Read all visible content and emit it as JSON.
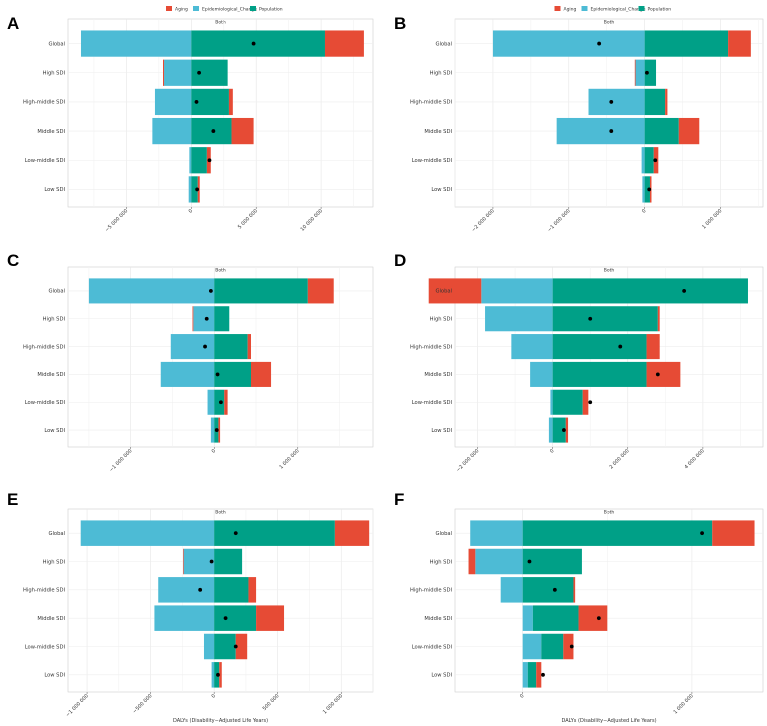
{
  "legend": {
    "entries": [
      {
        "name": "Aging",
        "color": "#E64B35"
      },
      {
        "name": "Epidemiological_Change",
        "color": "#4DBBD5"
      },
      {
        "name": "Population",
        "color": "#00A087"
      }
    ]
  },
  "chart_data": [
    {
      "panel": "A",
      "type": "bar",
      "orientation": "horizontal",
      "stacked": "diverging",
      "title": "Both",
      "xlabel": "",
      "ylabel": "",
      "legend": [
        "Aging",
        "Epidemiological_Change",
        "Population"
      ],
      "legend_position": "top",
      "categories": [
        "Global",
        "High SDI",
        "High-middle SDI",
        "Middle SDI",
        "Low-middle SDI",
        "Low SDI"
      ],
      "xlim": [
        -9500000,
        14000000
      ],
      "xticks": [
        -5000000,
        0,
        5000000,
        10000000
      ],
      "xtick_labels": [
        "−5 000 000",
        "0",
        "5 000 000",
        "10 000 000"
      ],
      "series": [
        {
          "name": "Epidemiological_Change",
          "values": [
            -8500000,
            -2100000,
            -2800000,
            -3000000,
            -150000,
            -200000
          ]
        },
        {
          "name": "Population",
          "values": [
            10300000,
            2800000,
            2900000,
            3100000,
            1200000,
            500000
          ]
        },
        {
          "name": "Aging",
          "values": [
            3000000,
            -80000,
            300000,
            1700000,
            300000,
            150000
          ]
        }
      ],
      "total": [
        4800000,
        600000,
        400000,
        1700000,
        1400000,
        450000
      ]
    },
    {
      "panel": "B",
      "type": "bar",
      "orientation": "horizontal",
      "stacked": "diverging",
      "title": "Both",
      "xlabel": "",
      "ylabel": "",
      "legend": [
        "Aging",
        "Epidemiological_Change",
        "Population"
      ],
      "legend_position": "top",
      "categories": [
        "Global",
        "High SDI",
        "High-middle SDI",
        "Middle SDI",
        "Low-middle SDI",
        "Low SDI"
      ],
      "xlim": [
        -2500000,
        1560000
      ],
      "xticks": [
        -2000000,
        -1000000,
        0,
        1000000
      ],
      "xtick_labels": [
        "−2 000 000",
        "−1 000 000",
        "0",
        "1 000 000"
      ],
      "series": [
        {
          "name": "Epidemiological_Change",
          "values": [
            -2000000,
            -120000,
            -740000,
            -1160000,
            -40000,
            -30000
          ]
        },
        {
          "name": "Population",
          "values": [
            1100000,
            150000,
            270000,
            450000,
            120000,
            70000
          ]
        },
        {
          "name": "Aging",
          "values": [
            300000,
            -10000,
            30000,
            270000,
            60000,
            20000
          ]
        }
      ],
      "total": [
        -600000,
        30000,
        -440000,
        -440000,
        140000,
        60000
      ]
    },
    {
      "panel": "C",
      "type": "bar",
      "orientation": "horizontal",
      "stacked": "diverging",
      "title": "Both",
      "xlabel": "",
      "ylabel": "",
      "legend": [],
      "legend_position": "none",
      "categories": [
        "Global",
        "High SDI",
        "High-middle SDI",
        "Middle SDI",
        "Low-middle SDI",
        "Low SDI"
      ],
      "xlim": [
        -1750000,
        1900000
      ],
      "xticks": [
        -1000000,
        0,
        1000000
      ],
      "xtick_labels": [
        "−1 000 000",
        "0",
        "1 000 000"
      ],
      "series": [
        {
          "name": "Epidemiological_Change",
          "values": [
            -1500000,
            -250000,
            -520000,
            -640000,
            -80000,
            -40000
          ]
        },
        {
          "name": "Population",
          "values": [
            1120000,
            180000,
            400000,
            440000,
            120000,
            50000
          ]
        },
        {
          "name": "Aging",
          "values": [
            310000,
            -10000,
            40000,
            240000,
            40000,
            20000
          ]
        }
      ],
      "total": [
        -40000,
        -90000,
        -110000,
        40000,
        80000,
        30000
      ]
    },
    {
      "panel": "D",
      "type": "bar",
      "orientation": "horizontal",
      "stacked": "diverging",
      "title": "Both",
      "xlabel": "",
      "ylabel": "",
      "legend": [],
      "legend_position": "none",
      "categories": [
        "Global",
        "High SDI",
        "High-middle SDI",
        "Middle SDI",
        "Low-middle SDI",
        "Low SDI"
      ],
      "xlim": [
        -2600000,
        5600000
      ],
      "xticks": [
        -2000000,
        0,
        2000000,
        4000000
      ],
      "xtick_labels": [
        "−2 000 000",
        "0",
        "2 000 000",
        "4 000 000"
      ],
      "series": [
        {
          "name": "Epidemiological_Change",
          "values": [
            -1900000,
            -1800000,
            -1100000,
            -600000,
            -60000,
            -100000
          ]
        },
        {
          "name": "Population",
          "values": [
            5200000,
            2800000,
            2500000,
            2500000,
            800000,
            350000
          ]
        },
        {
          "name": "Aging",
          "values": [
            -1400000,
            50000,
            350000,
            900000,
            150000,
            60000
          ]
        }
      ],
      "total": [
        3500000,
        1000000,
        1800000,
        2800000,
        1000000,
        300000
      ]
    },
    {
      "panel": "E",
      "type": "bar",
      "orientation": "horizontal",
      "stacked": "diverging",
      "title": "Both",
      "xlabel": "DALYs (Disability−Adjusted Life Years)",
      "ylabel": "",
      "legend": [],
      "legend_position": "none",
      "categories": [
        "Global",
        "High SDI",
        "High-middle SDI",
        "Middle SDI",
        "Low-middle SDI",
        "Low SDI"
      ],
      "xlim": [
        -1150000,
        1250000
      ],
      "xticks": [
        -1000000,
        -500000,
        0,
        500000,
        1000000
      ],
      "xtick_labels": [
        "−1 000 000",
        "−500 000",
        "0",
        "500 000",
        "1 000 000"
      ],
      "series": [
        {
          "name": "Epidemiological_Change",
          "values": [
            -1050000,
            -240000,
            -440000,
            -470000,
            -80000,
            -20000
          ]
        },
        {
          "name": "Population",
          "values": [
            950000,
            220000,
            270000,
            330000,
            170000,
            40000
          ]
        },
        {
          "name": "Aging",
          "values": [
            270000,
            -5000,
            60000,
            220000,
            90000,
            20000
          ]
        }
      ],
      "total": [
        170000,
        -20000,
        -110000,
        90000,
        170000,
        30000
      ]
    },
    {
      "panel": "F",
      "type": "bar",
      "orientation": "horizontal",
      "stacked": "diverging",
      "title": "Both",
      "xlabel": "DALYs (Disability−Adjusted Life Years)",
      "ylabel": "",
      "legend": [],
      "legend_position": "none",
      "categories": [
        "Global",
        "High SDI",
        "High-middle SDI",
        "Middle SDI",
        "Low-middle SDI",
        "Low SDI"
      ],
      "xlim": [
        -400000,
        1420000
      ],
      "xticks": [
        0,
        1000000
      ],
      "xtick_labels": [
        "0",
        "1 000 000"
      ],
      "series": [
        {
          "name": "Epidemiological_Change",
          "values": [
            -310000,
            -280000,
            -130000,
            60000,
            110000,
            30000
          ]
        },
        {
          "name": "Population",
          "values": [
            1120000,
            350000,
            300000,
            270000,
            130000,
            50000
          ]
        },
        {
          "name": "Aging",
          "values": [
            250000,
            -40000,
            10000,
            170000,
            60000,
            30000
          ]
        }
      ],
      "total": [
        1060000,
        40000,
        190000,
        450000,
        290000,
        120000
      ]
    }
  ]
}
